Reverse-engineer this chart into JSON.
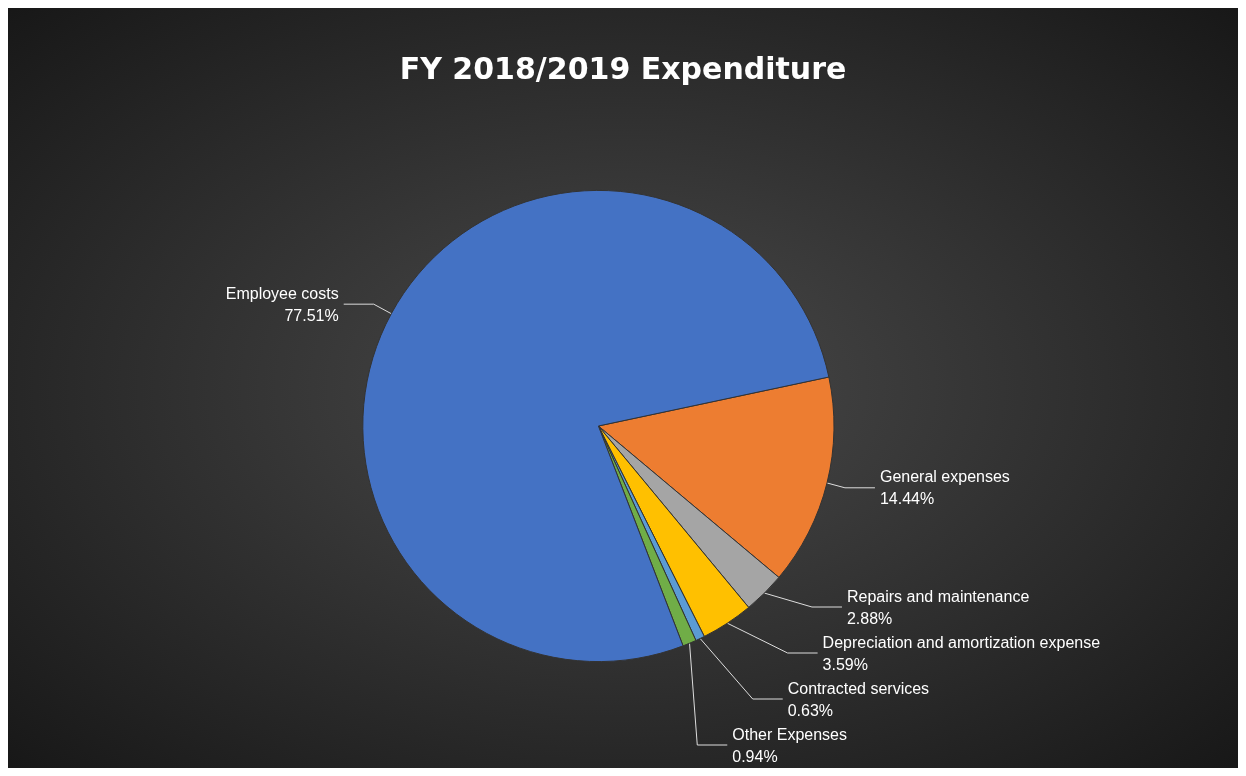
{
  "chart_data": {
    "type": "pie",
    "title": "FY 2018/2019 Expenditure",
    "categories": [
      "General expenses",
      "Repairs and maintenance",
      "Depreciation and amortization expense",
      "Contracted services",
      "Other Expenses",
      "Employee costs"
    ],
    "values": [
      14.44,
      2.88,
      3.59,
      0.63,
      0.94,
      77.51
    ],
    "value_labels": [
      "14.44%",
      "2.88%",
      "3.59%",
      "0.63%",
      "0.94%",
      "77.51%"
    ],
    "colors": [
      "#ed7d31",
      "#a5a5a5",
      "#ffc000",
      "#5b9bd5",
      "#70ad47",
      "#4472c4"
    ],
    "legend": false
  }
}
